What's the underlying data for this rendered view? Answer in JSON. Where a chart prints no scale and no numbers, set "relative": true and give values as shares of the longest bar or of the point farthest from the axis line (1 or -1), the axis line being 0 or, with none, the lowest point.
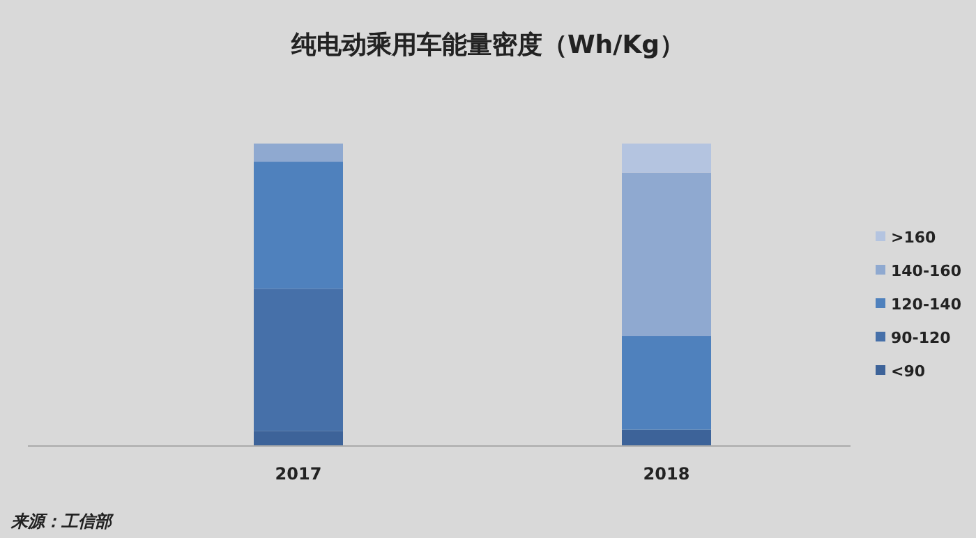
{
  "chart_data": {
    "type": "bar",
    "stacked": true,
    "relative": true,
    "title": "纯电动乘用车能量密度（Wh/Kg）",
    "categories": [
      "2017",
      "2018"
    ],
    "series": [
      {
        "name": "<90",
        "color": "#3d6399",
        "values": [
          0.05,
          0.054
        ]
      },
      {
        "name": "90-120",
        "color": "#4670a9",
        "values": [
          0.47,
          0
        ]
      },
      {
        "name": "120-140",
        "color": "#4f81bd",
        "values": [
          0.42,
          0.31
        ]
      },
      {
        "name": "140-160",
        "color": "#8fa9d0",
        "values": [
          0.06,
          0.54
        ]
      },
      {
        "name": ">160",
        "color": "#b4c4e0",
        "values": [
          0,
          0.096
        ]
      }
    ],
    "legend": "right",
    "annotations": [
      "来源：工信部"
    ]
  }
}
